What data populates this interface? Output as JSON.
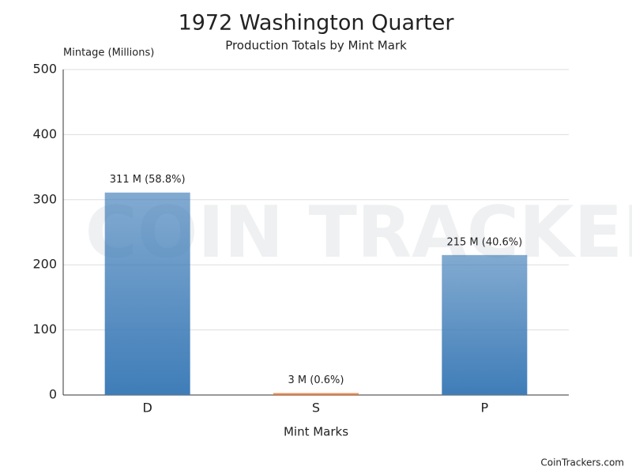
{
  "chart_data": {
    "type": "bar",
    "title": "1972 Washington Quarter",
    "subtitle": "Production Totals by Mint Mark",
    "y_label": "Mintage (Millions)",
    "x_label": "Mint Marks",
    "categories": [
      "D",
      "S",
      "P"
    ],
    "values": [
      311,
      3,
      215
    ],
    "value_labels": [
      "311 M (58.8%)",
      "3 M (0.6%)",
      "215 M (40.6%)"
    ],
    "colors": [
      "#3f7db8",
      "#e8702a",
      "#3f7db8"
    ],
    "ylim": [
      0,
      500
    ],
    "yticks": [
      0,
      100,
      200,
      300,
      400,
      500
    ],
    "grid": true,
    "watermark": "COIN TRACKERS",
    "credit": "CoinTrackers.com"
  }
}
